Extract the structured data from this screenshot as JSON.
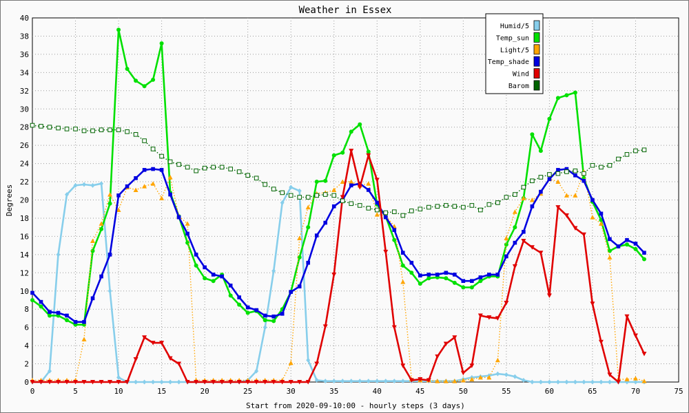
{
  "chart_data": {
    "type": "line",
    "title": "Weather in Essex",
    "xlabel": "Start from 2020-09-10:00 - hourly steps (3 days)",
    "ylabel": "Degrees",
    "xlim": [
      0,
      75
    ],
    "ylim": [
      0,
      40
    ],
    "xticks": [
      0,
      5,
      10,
      15,
      20,
      25,
      30,
      35,
      40,
      45,
      50,
      55,
      60,
      65,
      70,
      75
    ],
    "yticks": [
      0,
      2,
      4,
      6,
      8,
      10,
      12,
      14,
      16,
      18,
      20,
      22,
      24,
      26,
      28,
      30,
      32,
      34,
      36,
      38,
      40
    ],
    "grid": true,
    "legend_position": "top-right",
    "series": [
      {
        "name": "Humid/5",
        "color": "#87ceeb",
        "style": "solid",
        "marker": "diamond",
        "values": [
          0,
          0,
          1.2,
          14,
          20.6,
          21.6,
          21.7,
          21.6,
          21.8,
          10,
          0.5,
          0,
          0,
          0,
          0,
          0,
          0,
          0,
          0,
          0,
          0,
          0,
          0,
          0,
          0,
          0.2,
          1.2,
          6,
          12.2,
          19.7,
          21.4,
          21,
          2.4,
          0.2,
          0.1,
          0.1,
          0.1,
          0.1,
          0.1,
          0.1,
          0.1,
          0.1,
          0.1,
          0.1,
          0.1,
          0.1,
          0.1,
          0.1,
          0.1,
          0.1,
          0.3,
          0.5,
          0.6,
          0.7,
          0.9,
          0.8,
          0.6,
          0.2,
          0,
          0,
          0,
          0,
          0,
          0,
          0,
          0,
          0,
          0,
          0,
          0,
          0,
          0
        ]
      },
      {
        "name": "Temp_sun",
        "color": "#00e000",
        "style": "solid",
        "marker": "circle",
        "values": [
          9,
          8.3,
          7.3,
          7.3,
          6.8,
          6.3,
          6.3,
          14.4,
          16.8,
          19.6,
          38.7,
          34.4,
          33.1,
          32.5,
          33.2,
          37.2,
          20.8,
          18.2,
          15.3,
          12.8,
          11.4,
          11.1,
          11.8,
          9.5,
          8.5,
          7.6,
          7.8,
          6.8,
          6.7,
          8,
          9.9,
          13.7,
          17,
          22,
          22.1,
          24.9,
          25.2,
          27.5,
          28.3,
          25.3,
          19.5,
          18.2,
          15.6,
          12.8,
          12,
          10.8,
          11.4,
          11.5,
          11.4,
          10.9,
          10.4,
          10.4,
          11.1,
          11.6,
          11.6,
          15.1,
          17,
          20.2,
          27.2,
          25.4,
          28.9,
          31.2,
          31.5,
          31.8,
          22.4,
          19.8,
          17.8,
          14.4,
          14.9,
          15.1,
          14.6,
          13.5
        ]
      },
      {
        "name": "Light/5",
        "color": "#ffa500",
        "style": "dotted",
        "marker": "triangle",
        "values": [
          0.2,
          0.2,
          0.2,
          0.2,
          0.2,
          0.2,
          4.7,
          15.5,
          17.4,
          20.6,
          18.9,
          21.4,
          21.1,
          21.5,
          21.8,
          20.2,
          22.5,
          18.2,
          17.4,
          0.2,
          0.2,
          0.2,
          0.2,
          0.2,
          0.2,
          0.2,
          0.2,
          0.2,
          0.2,
          0.2,
          2.1,
          15.8,
          19.2,
          20.7,
          20.8,
          21.1,
          22,
          22,
          21.6,
          21.8,
          18.4,
          18.3,
          17.1,
          11,
          0.3,
          0.2,
          0.2,
          0.1,
          0.1,
          0.1,
          0.2,
          0.3,
          0.5,
          0.5,
          2.4,
          15.8,
          18.7,
          20.2,
          20,
          20.7,
          22.3,
          22,
          20.5,
          20.5,
          23.1,
          18.1,
          17.4,
          13.7,
          0.3,
          0.3,
          0.4,
          0.1
        ]
      },
      {
        "name": "Temp_shade",
        "color": "#0000e0",
        "style": "solid",
        "marker": "square",
        "values": [
          9.8,
          8.8,
          7.7,
          7.6,
          7.3,
          6.6,
          6.6,
          9.2,
          11.6,
          14,
          20.5,
          21.5,
          22.4,
          23.3,
          23.4,
          23.3,
          20.6,
          18.1,
          16.3,
          14,
          12.6,
          11.8,
          11.6,
          10.6,
          9.3,
          8.2,
          7.9,
          7.3,
          7.2,
          7.5,
          9.9,
          10.5,
          13.1,
          16.1,
          17.5,
          19.3,
          20,
          21.6,
          21.8,
          21.1,
          19.7,
          18.1,
          16.7,
          14.2,
          13.1,
          11.7,
          11.8,
          11.8,
          12,
          11.8,
          11.1,
          11.1,
          11.5,
          11.8,
          11.8,
          13.8,
          15.3,
          16.5,
          19.3,
          20.9,
          22.3,
          23.3,
          23.4,
          22.7,
          22.1,
          20,
          18.5,
          15.7,
          14.9,
          15.6,
          15.2,
          14.2
        ]
      },
      {
        "name": "Wind",
        "color": "#e00000",
        "style": "solid",
        "marker": "triangle-down",
        "values": [
          0,
          0,
          0,
          0,
          0,
          0,
          0,
          0,
          0,
          0,
          0,
          0,
          2.5,
          4.9,
          4.3,
          4.3,
          2.6,
          2,
          0,
          0,
          0,
          0,
          0,
          0,
          0,
          0,
          0,
          0,
          0,
          0,
          0,
          0,
          0,
          2,
          6.1,
          11.8,
          20.3,
          25.4,
          21.4,
          24.9,
          22.2,
          14.3,
          6,
          1.8,
          0.2,
          0.3,
          0.2,
          2.8,
          4.2,
          4.9,
          1,
          1.8,
          7.3,
          7.1,
          7,
          8.7,
          12.7,
          15.5,
          14.8,
          14.2,
          9.5,
          19.2,
          18.3,
          16.9,
          16.2,
          8.6,
          4.4,
          0.8,
          0,
          7.2,
          5.1,
          3.1
        ]
      },
      {
        "name": "Barom",
        "color": "#006400",
        "style": "dotted",
        "marker": "open-square",
        "values": [
          28.2,
          28.1,
          28,
          27.9,
          27.8,
          27.8,
          27.6,
          27.6,
          27.7,
          27.7,
          27.7,
          27.5,
          27.2,
          26.5,
          25.6,
          24.8,
          24.2,
          23.9,
          23.6,
          23.2,
          23.5,
          23.6,
          23.6,
          23.4,
          23.1,
          22.7,
          22.4,
          21.7,
          21.2,
          20.8,
          20.5,
          20.3,
          20.3,
          20.5,
          20.6,
          20.5,
          19.9,
          19.6,
          19.4,
          19.1,
          18.9,
          18.6,
          18.7,
          18.3,
          18.8,
          19,
          19.2,
          19.3,
          19.4,
          19.3,
          19.2,
          19.4,
          18.9,
          19.5,
          19.7,
          20.3,
          20.6,
          21.4,
          22.1,
          22.5,
          22.8,
          22.9,
          23.1,
          23.2,
          22.9,
          23.8,
          23.6,
          23.8,
          24.5,
          25,
          25.4,
          25.5
        ]
      }
    ]
  }
}
